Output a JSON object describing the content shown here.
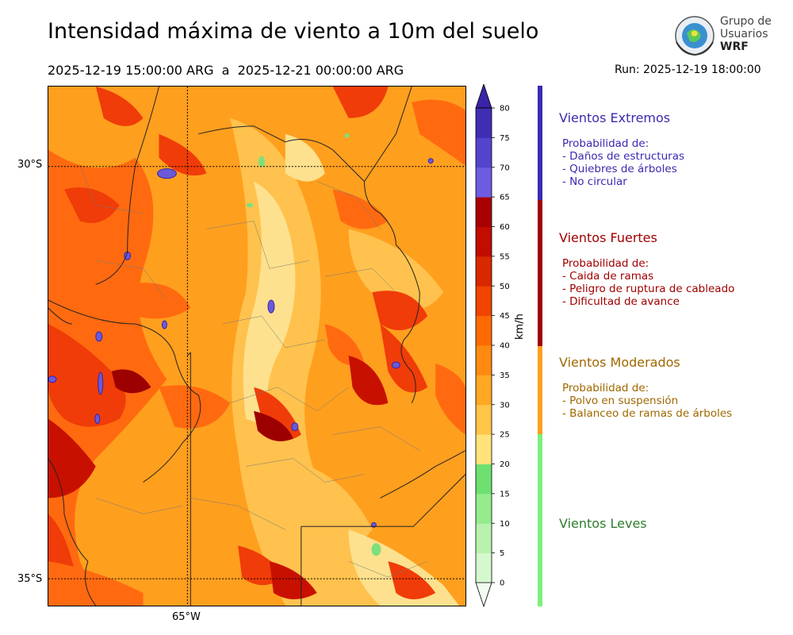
{
  "header": {
    "title": "Intensidad máxima de viento a 10m del suelo",
    "period": "2025-12-19 15:00:00 ARG  a  2025-12-21 00:00:00 ARG",
    "run": "Run: 2025-12-19 18:00:00"
  },
  "logo": {
    "line1": "Grupo de",
    "line2": "Usuarios",
    "line3": "WRF"
  },
  "map": {
    "lat_labels": [
      "30°S",
      "35°S"
    ],
    "lon_labels": [
      "65°W"
    ],
    "colors": {
      "light": "#fde79a",
      "mid": "#ffc04a",
      "orange": "#ff9a1a",
      "dark": "#ff6a00",
      "red": "#f03a0a",
      "crimson": "#c81000",
      "maroon": "#9c0000",
      "purple": "#6a5ad8",
      "green": "#7de07d"
    }
  },
  "colorbar": {
    "unit": "km/h",
    "ticks": [
      "0",
      "5",
      "10",
      "15",
      "20",
      "25",
      "30",
      "35",
      "40",
      "45",
      "50",
      "55",
      "60",
      "65",
      "70",
      "75",
      "80"
    ],
    "colors": [
      "#f2fdf0",
      "#d6f8cf",
      "#b8f2ac",
      "#94ec8c",
      "#6ee070",
      "#ffe27a",
      "#ffc548",
      "#ffa822",
      "#ff8a12",
      "#ff6a00",
      "#f04400",
      "#d82800",
      "#c10c00",
      "#a80000",
      "#6e5ce0",
      "#5444cc",
      "#3f2eb4",
      "#3a23a8"
    ]
  },
  "legend": [
    {
      "title": "Vientos Extremos",
      "body": "Probabilidad de:\n- Daños de estructuras\n- Quiebres de árboles\n- No circular",
      "color": "#3a2ab0"
    },
    {
      "title": "Vientos Fuertes",
      "body": "Probabilidad de:\n- Caida de ramas\n- Peligro de ruptura de cableado\n- Dificultad de avance",
      "color": "#a00000"
    },
    {
      "title": "Vientos Moderados",
      "body": "Probabilidad de:\n- Polvo en suspensión\n- Balanceo de ramas de árboles",
      "color": "#a06800",
      "bar": "#ffa020"
    },
    {
      "title": "Vientos Leves",
      "body": "",
      "color": "#2e7d2e",
      "bar": "#7cf07c"
    }
  ]
}
